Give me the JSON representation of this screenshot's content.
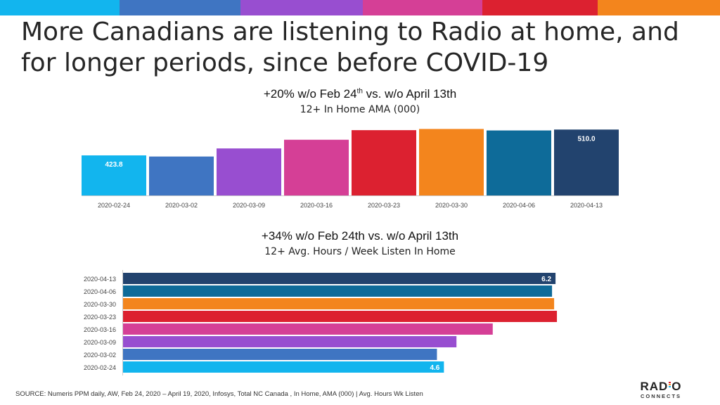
{
  "top_stripe_colors": [
    "#12b5ee",
    "#3f75c2",
    "#984ed0",
    "#d53f96",
    "#dc2130",
    "#f3851d"
  ],
  "title": "More Canadians are listening to Radio at home, and for longer periods, since before COVID-19",
  "chart_data": [
    {
      "type": "bar",
      "orientation": "vertical",
      "title_main": "+20% w/o Feb 24",
      "title_sup": "th",
      "title_rest": " vs. w/o April 13th",
      "subtitle": "12+ In Home AMA (000)",
      "categories": [
        "2020-02-24",
        "2020-03-02",
        "2020-03-09",
        "2020-03-16",
        "2020-03-23",
        "2020-03-30",
        "2020-04-06",
        "2020-04-13"
      ],
      "values": [
        423.8,
        420,
        447,
        476,
        508,
        512,
        507,
        510.0
      ],
      "data_labels": [
        "423.8",
        "",
        "",
        "",
        "",
        "",
        "",
        "510.0"
      ],
      "colors": [
        "#12b5ee",
        "#3f75c2",
        "#984ed0",
        "#d53f96",
        "#dc2130",
        "#f3851d",
        "#0e6b99",
        "#22436e"
      ],
      "ylim": [
        290,
        520
      ],
      "grid": false
    },
    {
      "type": "bar",
      "orientation": "horizontal",
      "title": "+34% w/o Feb 24th vs. w/o April 13th",
      "subtitle": "12+ Avg. Hours / Week Listen In Home",
      "categories": [
        "2020-04-13",
        "2020-04-06",
        "2020-03-30",
        "2020-03-23",
        "2020-03-16",
        "2020-03-09",
        "2020-03-02",
        "2020-02-24"
      ],
      "values": [
        6.2,
        6.15,
        6.18,
        6.22,
        5.3,
        4.78,
        4.5,
        4.6
      ],
      "data_labels": [
        "6.2",
        "",
        "",
        "",
        "",
        "",
        "",
        "4.6"
      ],
      "colors": [
        "#22436e",
        "#0e6b99",
        "#f3851d",
        "#dc2130",
        "#d53f96",
        "#984ed0",
        "#3f75c2",
        "#12b5ee"
      ],
      "xlim": [
        0,
        6.3
      ],
      "grid": false
    }
  ],
  "source": "SOURCE:  Numeris PPM daily, AW, Feb 24, 2020 – April 19, 2020, Infosys, Total NC Canada ,  In Home,  AMA (000) | Avg. Hours Wk Listen",
  "logo": {
    "word_left": "RAD",
    "word_right": "O",
    "sub": "CONNECTS",
    "bar_colors": [
      "#dc2130",
      "#f3851d",
      "#12b5ee"
    ]
  }
}
